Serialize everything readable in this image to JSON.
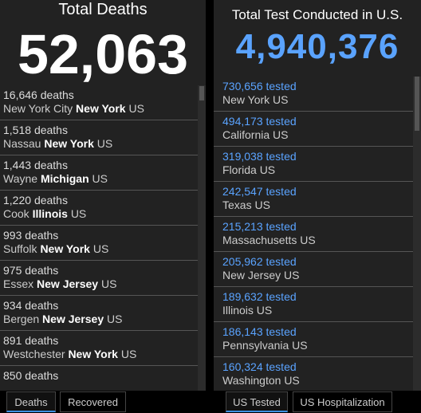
{
  "deaths_panel": {
    "title": "Total Deaths",
    "total": "52,063",
    "items": [
      {
        "count": "16,646",
        "unit": "deaths",
        "place": "New York City",
        "state": "New York",
        "country": "US"
      },
      {
        "count": "1,518",
        "unit": "deaths",
        "place": "Nassau",
        "state": "New York",
        "country": "US"
      },
      {
        "count": "1,443",
        "unit": "deaths",
        "place": "Wayne",
        "state": "Michigan",
        "country": "US"
      },
      {
        "count": "1,220",
        "unit": "deaths",
        "place": "Cook",
        "state": "Illinois",
        "country": "US"
      },
      {
        "count": "993",
        "unit": "deaths",
        "place": "Suffolk",
        "state": "New York",
        "country": "US"
      },
      {
        "count": "975",
        "unit": "deaths",
        "place": "Essex",
        "state": "New Jersey",
        "country": "US"
      },
      {
        "count": "934",
        "unit": "deaths",
        "place": "Bergen",
        "state": "New Jersey",
        "country": "US"
      },
      {
        "count": "891",
        "unit": "deaths",
        "place": "Westchester",
        "state": "New York",
        "country": "US"
      },
      {
        "count": "850",
        "unit": "deaths",
        "place": "",
        "state": "",
        "country": ""
      }
    ],
    "tabs": [
      "Deaths",
      "Recovered"
    ]
  },
  "tests_panel": {
    "title": "Total Test Conducted in U.S.",
    "total": "4,940,376",
    "items": [
      {
        "count": "730,656",
        "unit": "tested",
        "place": "New York",
        "country": "US"
      },
      {
        "count": "494,173",
        "unit": "tested",
        "place": "California",
        "country": "US"
      },
      {
        "count": "319,038",
        "unit": "tested",
        "place": "Florida",
        "country": "US"
      },
      {
        "count": "242,547",
        "unit": "tested",
        "place": "Texas",
        "country": "US"
      },
      {
        "count": "215,213",
        "unit": "tested",
        "place": "Massachusetts",
        "country": "US"
      },
      {
        "count": "205,962",
        "unit": "tested",
        "place": "New Jersey",
        "country": "US"
      },
      {
        "count": "189,632",
        "unit": "tested",
        "place": "Illinois",
        "country": "US"
      },
      {
        "count": "186,143",
        "unit": "tested",
        "place": "Pennsylvania",
        "country": "US"
      },
      {
        "count": "160,324",
        "unit": "tested",
        "place": "Washington",
        "country": "US"
      }
    ],
    "tabs": [
      "US Tested",
      "US Hospitalization"
    ]
  }
}
